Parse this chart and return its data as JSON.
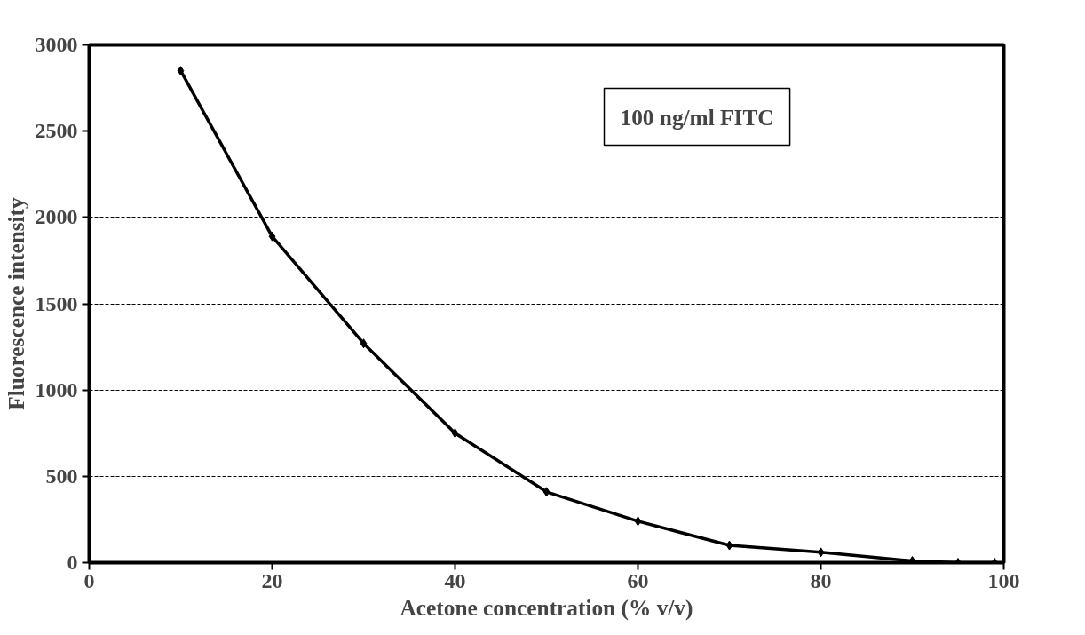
{
  "chart_data": {
    "type": "line",
    "xlabel": "Acetone concentration (% v/v)",
    "ylabel": "Fluorescence intensity",
    "annotations": [
      "100 ng/ml FITC"
    ],
    "x": [
      10,
      20,
      30,
      40,
      50,
      60,
      70,
      80,
      90,
      95,
      99
    ],
    "series": [
      {
        "color": "#000000",
        "values": [
          2850,
          1890,
          1270,
          750,
          410,
          240,
          100,
          60,
          10,
          0,
          0
        ]
      }
    ],
    "xlim": [
      0,
      100
    ],
    "xticks": [
      0,
      20,
      40,
      60,
      80,
      100
    ],
    "ylim": [
      0,
      3000
    ],
    "yticks": [
      0,
      500,
      1000,
      1500,
      2000,
      2500,
      3000
    ],
    "grid": "y",
    "marker": "diamond",
    "line_style": "solid"
  }
}
